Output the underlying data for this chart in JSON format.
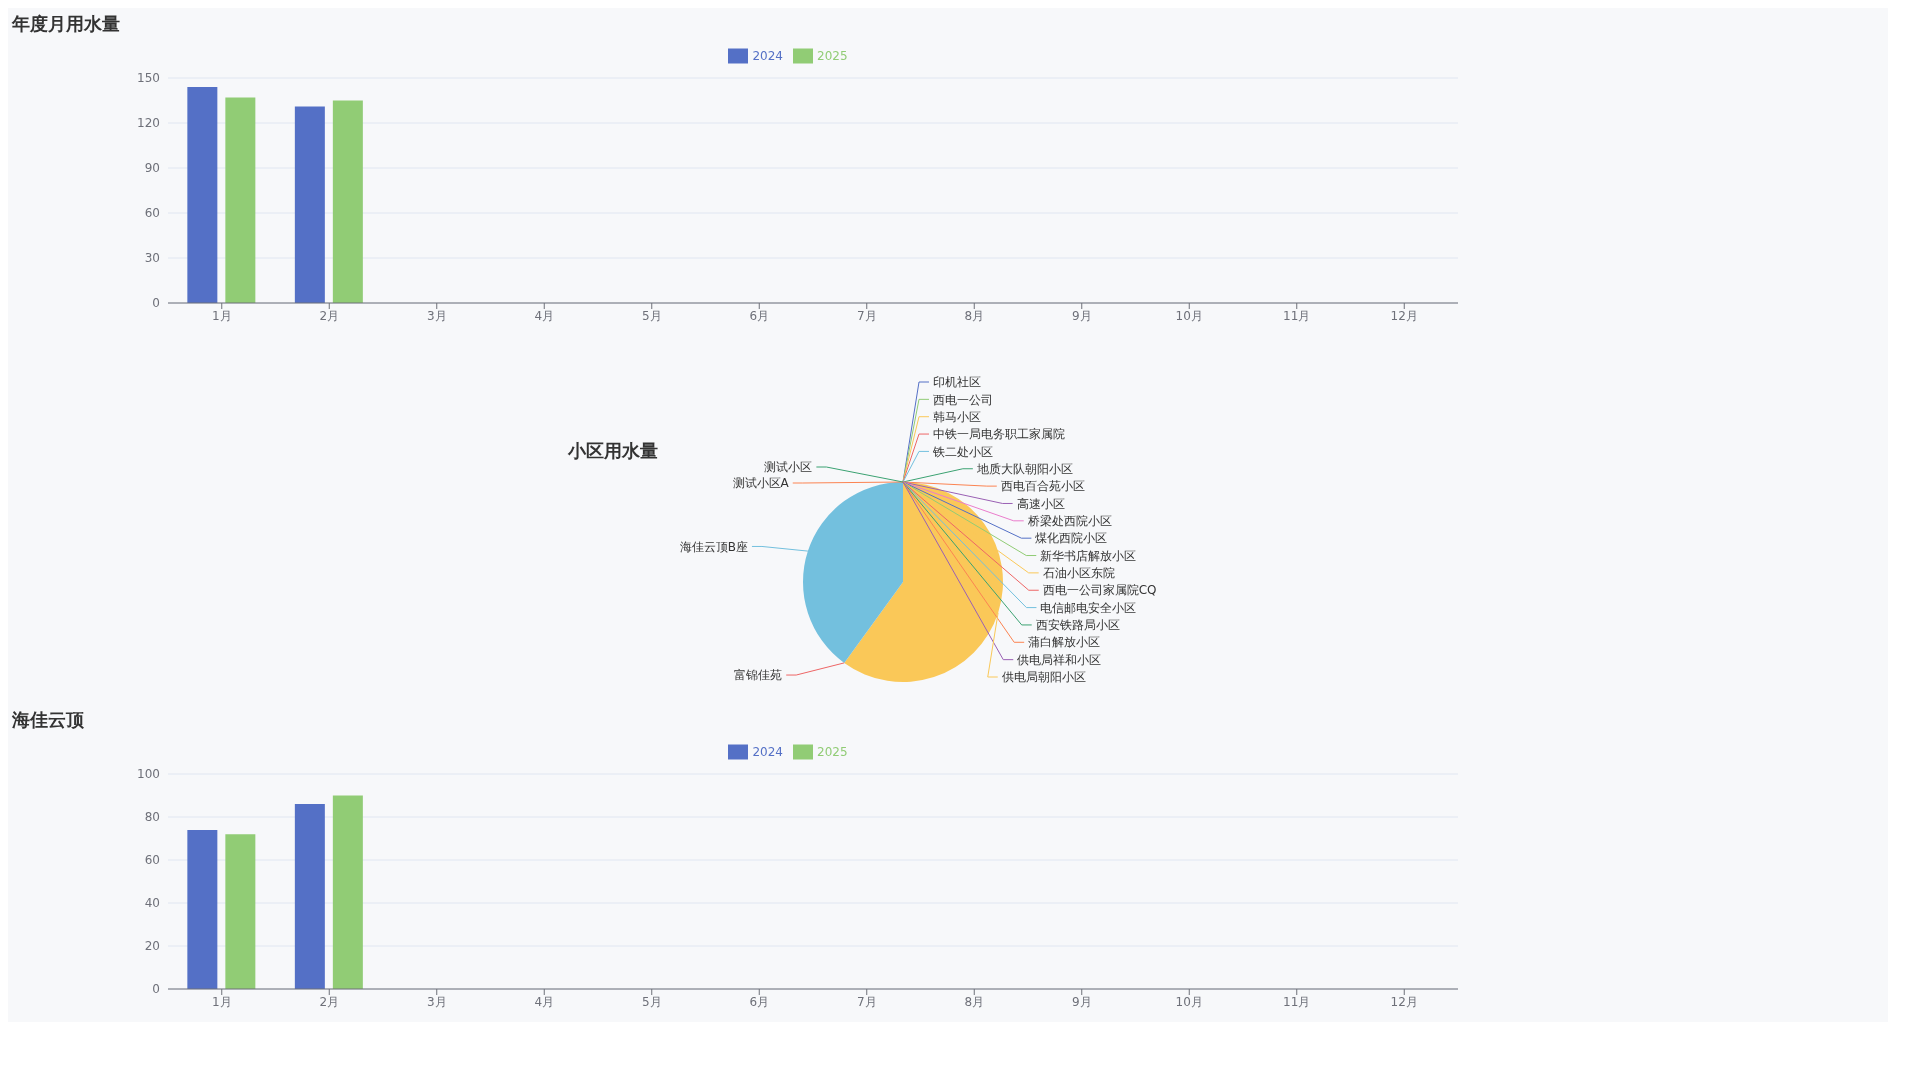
{
  "chart_data": [
    {
      "type": "bar",
      "title": "年度月用水量",
      "categories": [
        "1月",
        "2月",
        "3月",
        "4月",
        "5月",
        "6月",
        "7月",
        "8月",
        "9月",
        "10月",
        "11月",
        "12月"
      ],
      "series": [
        {
          "name": "2024",
          "color": "#5470c6",
          "values": [
            144,
            131,
            null,
            null,
            null,
            null,
            null,
            null,
            null,
            null,
            null,
            null
          ]
        },
        {
          "name": "2025",
          "color": "#91cc75",
          "values": [
            137,
            135,
            null,
            null,
            null,
            null,
            null,
            null,
            null,
            null,
            null,
            null
          ]
        }
      ],
      "ylim": [
        0,
        150
      ],
      "yticks": [
        0,
        30,
        60,
        90,
        120,
        150
      ],
      "grid": "y",
      "legend": "top"
    },
    {
      "type": "pie",
      "title": "小区用水量",
      "categories": [
        "印机社区",
        "西电一公司",
        "韩马小区",
        "中铁一局电务职工家属院",
        "铁二处小区",
        "地质大队朝阳小区",
        "西电百合苑小区",
        "高速小区",
        "桥梁处西院小区",
        "煤化西院小区",
        "新华书店解放小区",
        "石油小区东院",
        "西电一公司家属院CQ",
        "电信邮电安全小区",
        "西安铁路局小区",
        "蒲白解放小区",
        "供电局祥和小区",
        "供电局朝阳小区",
        "富锦佳苑",
        "海佳云顶B座",
        "测试小区A",
        "测试小区"
      ],
      "values": [
        0,
        0,
        0,
        0,
        0,
        0,
        0,
        0,
        0,
        0,
        0,
        0,
        0,
        0,
        0,
        0,
        0,
        60,
        0,
        40,
        0,
        0
      ],
      "colors": [
        "#5470c6",
        "#91cc75",
        "#fac858",
        "#ee6666",
        "#73c0de",
        "#3ba272",
        "#fc8452",
        "#9a60b4",
        "#ea7ccc",
        "#5470c6",
        "#91cc75",
        "#fac858",
        "#ee6666",
        "#73c0de",
        "#3ba272",
        "#fc8452",
        "#9a60b4",
        "#fac858",
        "#ee6666",
        "#73c0de",
        "#fc8452",
        "#3ba272"
      ]
    },
    {
      "type": "bar",
      "title": "海佳云顶",
      "categories": [
        "1月",
        "2月",
        "3月",
        "4月",
        "5月",
        "6月",
        "7月",
        "8月",
        "9月",
        "10月",
        "11月",
        "12月"
      ],
      "series": [
        {
          "name": "2024",
          "color": "#5470c6",
          "values": [
            74,
            86,
            null,
            null,
            null,
            null,
            null,
            null,
            null,
            null,
            null,
            null
          ]
        },
        {
          "name": "2025",
          "color": "#91cc75",
          "values": [
            72,
            90,
            null,
            null,
            null,
            null,
            null,
            null,
            null,
            null,
            null,
            null
          ]
        }
      ],
      "ylim": [
        0,
        100
      ],
      "yticks": [
        0,
        20,
        40,
        60,
        80,
        100
      ],
      "grid": "y",
      "legend": "top"
    }
  ]
}
